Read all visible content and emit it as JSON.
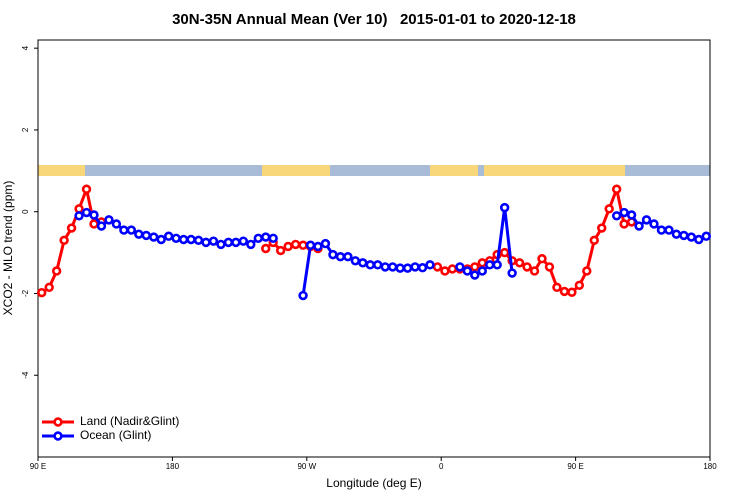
{
  "chart_data": {
    "type": "line",
    "title": "30N-35N Annual Mean (Ver 10)   2015-01-01 to 2020-12-18",
    "xlabel": "Longitude (deg E)",
    "ylabel": "XCO2 - MLO trend (ppm)",
    "xlim": [
      90,
      540
    ],
    "ylim": [
      -6,
      4.2
    ],
    "xticks": [
      {
        "value": 90,
        "label": "90 E"
      },
      180,
      {
        "value": 270,
        "label": "90 W"
      },
      {
        "value": 360,
        "label": "0"
      },
      {
        "value": 450,
        "label": "90 E"
      },
      {
        "value": 540,
        "label": "180"
      }
    ],
    "yticks": [
      -4,
      -2,
      0,
      2,
      4
    ],
    "legend": "bottom-left",
    "series": [
      {
        "name": "Land (Nadir&Glint)",
        "color": "#ff0000",
        "x": [
          92.5,
          97.5,
          102.5,
          107.5,
          112.5,
          117.5,
          122.5,
          127.5,
          132.5,
          137.5,
          242.5,
          247.5,
          252.5,
          257.5,
          262.5,
          267.5,
          272.5,
          277.5,
          282.5,
          357.5,
          362.5,
          367.5,
          372.5,
          377.5,
          382.5,
          387.5,
          392.5,
          397.5,
          402.5,
          407.5,
          412.5,
          417.5,
          422.5,
          427.5,
          432.5,
          437.5,
          442.5,
          447.5,
          452.5,
          457.5,
          462.5,
          467.5,
          472.5,
          477.5,
          482.5,
          487.5
        ],
        "values": [
          -1.98,
          -1.85,
          -1.45,
          -0.7,
          -0.4,
          0.07,
          0.55,
          -0.3,
          -0.25,
          null,
          -0.9,
          -0.75,
          -0.95,
          -0.85,
          -0.8,
          -0.82,
          -0.85,
          -0.9,
          null,
          -1.35,
          -1.45,
          -1.4,
          -1.4,
          -1.4,
          -1.35,
          -1.25,
          -1.2,
          -1.05,
          -1.0,
          -1.2,
          -1.25,
          -1.35,
          -1.45,
          -1.15,
          -1.35,
          -1.85,
          -1.95,
          -1.97,
          -1.8,
          -1.45,
          -0.7,
          -0.4,
          0.07,
          0.55,
          -0.3,
          -0.25
        ]
      },
      {
        "name": "Ocean (Glint)",
        "color": "#0000ff",
        "x": [
          117.5,
          122.5,
          127.5,
          132.5,
          137.5,
          142.5,
          147.5,
          152.5,
          157.5,
          162.5,
          167.5,
          172.5,
          177.5,
          182.5,
          187.5,
          192.5,
          197.5,
          202.5,
          207.5,
          212.5,
          217.5,
          222.5,
          227.5,
          232.5,
          237.5,
          242.5,
          247.5,
          257.5,
          267.5,
          272.5,
          277.5,
          282.5,
          287.5,
          292.5,
          297.5,
          302.5,
          307.5,
          312.5,
          317.5,
          322.5,
          327.5,
          332.5,
          337.5,
          342.5,
          347.5,
          352.5,
          362.5,
          372.5,
          377.5,
          382.5,
          387.5,
          392.5,
          397.5,
          402.5,
          407.5,
          442.5,
          477.5,
          482.5,
          487.5,
          492.5,
          497.5,
          502.5,
          507.5,
          512.5,
          517.5,
          522.5,
          527.5,
          532.5,
          537.5
        ],
        "values": [
          -0.1,
          -0.02,
          -0.08,
          -0.35,
          -0.2,
          -0.3,
          -0.45,
          -0.45,
          -0.55,
          -0.58,
          -0.62,
          -0.68,
          -0.6,
          -0.65,
          -0.68,
          -0.68,
          -0.7,
          -0.75,
          -0.72,
          -0.8,
          -0.75,
          -0.75,
          -0.72,
          -0.8,
          -0.65,
          -0.62,
          -0.65,
          null,
          -2.05,
          -0.82,
          -0.85,
          -0.78,
          -1.05,
          -1.1,
          -1.1,
          -1.2,
          -1.25,
          -1.3,
          -1.3,
          -1.35,
          -1.35,
          -1.38,
          -1.38,
          -1.35,
          -1.37,
          -1.3,
          null,
          -1.35,
          -1.45,
          -1.55,
          -1.45,
          -1.3,
          -1.3,
          0.1,
          -1.5,
          null,
          -0.1,
          -0.02,
          -0.08,
          -0.35,
          -0.2,
          -0.3,
          -0.45,
          -0.45,
          -0.55,
          -0.58,
          -0.62,
          -0.68,
          -0.6
        ]
      }
    ]
  }
}
